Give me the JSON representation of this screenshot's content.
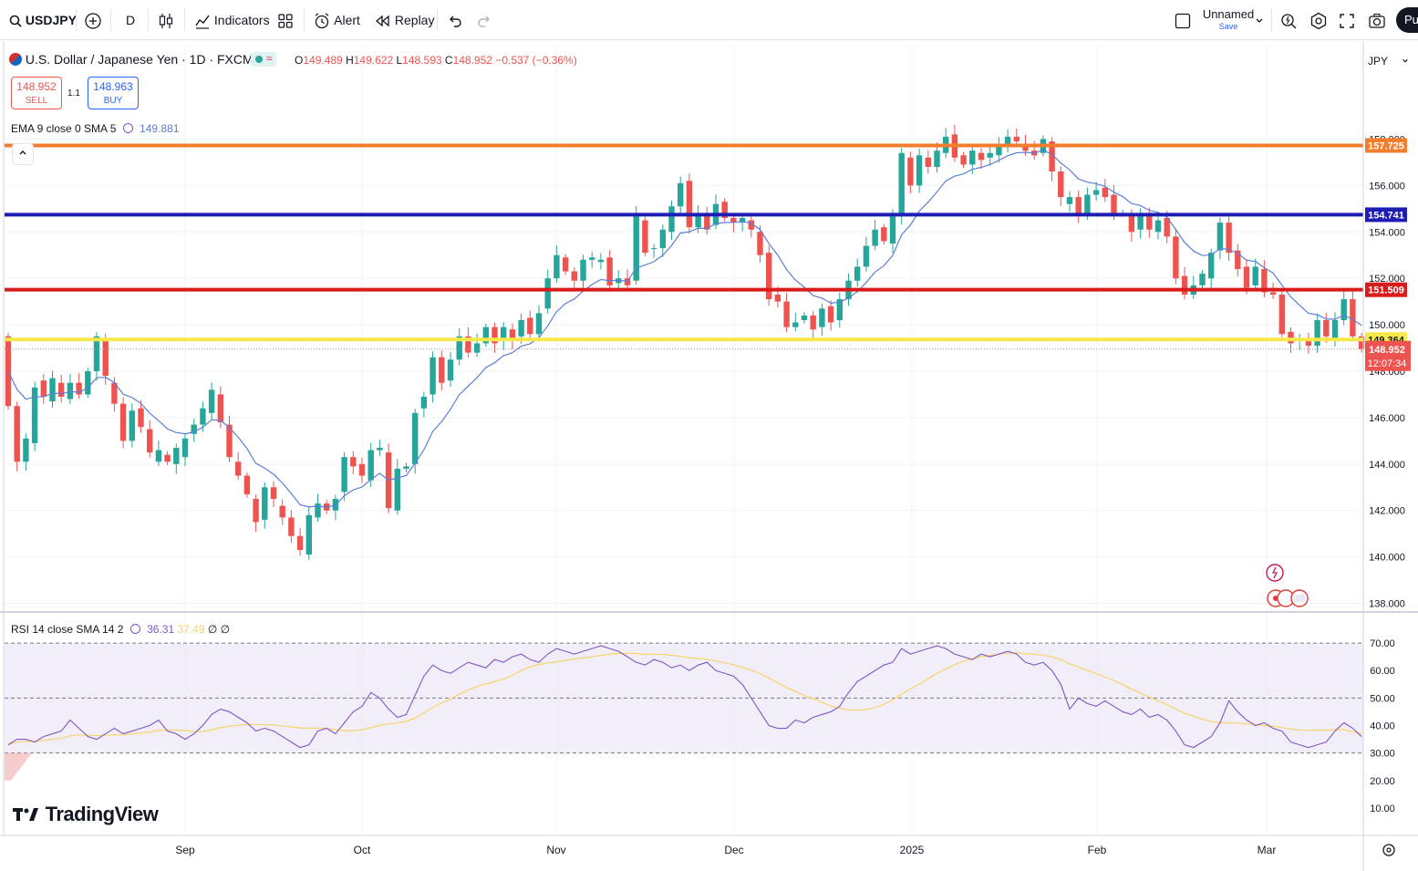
{
  "toolbar": {
    "symbol": "USDJPY",
    "interval": "D",
    "indicators_label": "Indicators",
    "alert_label": "Alert",
    "replay_label": "Replay",
    "layout_name": "Unnamed",
    "layout_save": "Save",
    "publish_label": "Pu"
  },
  "header": {
    "title": "U.S. Dollar / Japanese Yen · 1D · FXCM",
    "ohlc": {
      "o_label": "O",
      "open": "149.489",
      "h_label": "H",
      "high": "149.622",
      "l_label": "L",
      "low": "148.593",
      "c_label": "C",
      "close": "148.952",
      "change": "−0.537 (−0.36%)"
    },
    "sell_price": "148.952",
    "sell_label": "SELL",
    "spread": "1.1",
    "buy_price": "148.963",
    "buy_label": "BUY",
    "ema_label": "EMA 9 close 0 SMA 5",
    "ema_value": "149.881",
    "currency": "JPY"
  },
  "rsi_legend": {
    "label": "RSI 14 close SMA 14 2",
    "rsi": "36.31",
    "sma": "37.49",
    "extra": "∅ ∅"
  },
  "logo": "TradingView",
  "colors": {
    "up": "#26a69a",
    "down": "#ef5350",
    "ema": "#5b7fd8",
    "orange": "#f57c2a",
    "blue": "#1d1db5",
    "red": "#d81b1b",
    "yellow": "#f7e84a",
    "rsi": "#7e57c2",
    "rsi_sma": "#f5d46b",
    "rsi_bg": "#ede7f6"
  },
  "chart_data": {
    "type": "candlestick",
    "price_axis": {
      "min": 137,
      "max": 159,
      "ticks": [
        "138.000",
        "140.000",
        "142.000",
        "144.000",
        "146.000",
        "148.000",
        "150.000",
        "152.000",
        "154.000",
        "156.000",
        "158.000"
      ]
    },
    "rsi_axis": {
      "min": 7,
      "max": 75,
      "ticks": [
        "10.00",
        "20.00",
        "30.00",
        "40.00",
        "50.00",
        "60.00",
        "70.00"
      ],
      "bands": [
        30,
        50,
        70
      ]
    },
    "time_labels": [
      "Sep",
      "Oct",
      "Nov",
      "Dec",
      "2025",
      "Feb",
      "Mar"
    ],
    "horizontal_lines": [
      {
        "price": 157.725,
        "label": "157.725",
        "color": "#f57c2a"
      },
      {
        "price": 154.741,
        "label": "154.741",
        "color": "#1d1db5"
      },
      {
        "price": 151.509,
        "label": "151.509",
        "color": "#d81b1b"
      },
      {
        "price": 149.364,
        "label": "149.364",
        "color": "#f7e84a"
      }
    ],
    "last_price": {
      "price": 148.952,
      "label": "148.952",
      "countdown": "12:07:34"
    },
    "candles": [
      [
        149.5,
        146.5
      ],
      [
        146.5,
        144.1
      ],
      [
        144.1,
        145.1
      ],
      [
        144.9,
        147.3
      ],
      [
        147.6,
        146.9
      ],
      [
        146.7,
        147.7
      ],
      [
        147.5,
        146.9
      ],
      [
        146.8,
        147.5
      ],
      [
        147.5,
        147.0
      ],
      [
        147.0,
        148.0
      ],
      [
        148.0,
        149.5
      ],
      [
        149.4,
        147.8
      ],
      [
        147.5,
        146.6
      ],
      [
        146.6,
        145.0
      ],
      [
        145.0,
        146.3
      ],
      [
        146.4,
        145.6
      ],
      [
        145.5,
        144.5
      ],
      [
        144.1,
        144.6
      ],
      [
        144.4,
        144.1
      ],
      [
        144.0,
        144.7
      ],
      [
        144.3,
        145.1
      ],
      [
        145.3,
        145.7
      ],
      [
        145.7,
        146.4
      ],
      [
        146.2,
        147.2
      ],
      [
        147.0,
        145.8
      ],
      [
        145.7,
        144.3
      ],
      [
        144.1,
        143.5
      ],
      [
        143.5,
        142.7
      ],
      [
        142.5,
        141.5
      ],
      [
        141.6,
        143.0
      ],
      [
        143.0,
        142.5
      ],
      [
        142.2,
        141.7
      ],
      [
        141.7,
        140.9
      ],
      [
        140.9,
        140.3
      ],
      [
        140.1,
        141.8
      ],
      [
        141.7,
        142.3
      ],
      [
        142.3,
        142.0
      ],
      [
        142.0,
        142.5
      ],
      [
        142.8,
        144.3
      ],
      [
        144.3,
        143.9
      ],
      [
        144.0,
        143.5
      ],
      [
        143.3,
        144.6
      ],
      [
        144.6,
        144.7
      ],
      [
        144.5,
        142.1
      ],
      [
        142.0,
        143.8
      ],
      [
        143.8,
        143.9
      ],
      [
        144.0,
        146.2
      ],
      [
        146.4,
        146.9
      ],
      [
        147.0,
        148.6
      ],
      [
        148.6,
        147.5
      ],
      [
        147.6,
        148.5
      ],
      [
        148.5,
        149.5
      ],
      [
        149.5,
        148.8
      ],
      [
        148.8,
        149.2
      ],
      [
        149.2,
        149.9
      ],
      [
        149.9,
        149.2
      ],
      [
        149.3,
        149.9
      ],
      [
        149.8,
        149.3
      ],
      [
        149.5,
        150.2
      ],
      [
        150.3,
        149.6
      ],
      [
        149.6,
        150.5
      ],
      [
        150.7,
        152.0
      ],
      [
        152.0,
        153.0
      ],
      [
        152.9,
        152.3
      ],
      [
        152.3,
        151.9
      ],
      [
        151.9,
        152.8
      ],
      [
        152.8,
        152.9
      ],
      [
        152.7,
        152.8
      ],
      [
        152.9,
        151.7
      ],
      [
        151.8,
        152.0
      ],
      [
        152.0,
        151.7
      ],
      [
        151.9,
        154.7
      ],
      [
        154.5,
        153.1
      ],
      [
        153.3,
        153.3
      ],
      [
        153.3,
        154.1
      ],
      [
        154.0,
        155.1
      ],
      [
        155.1,
        156.1
      ],
      [
        156.2,
        154.2
      ],
      [
        154.2,
        154.8
      ],
      [
        154.7,
        154.1
      ],
      [
        154.3,
        155.2
      ],
      [
        155.3,
        154.6
      ],
      [
        154.6,
        154.4
      ],
      [
        154.4,
        154.6
      ],
      [
        154.5,
        154.1
      ],
      [
        154.0,
        153.0
      ],
      [
        153.1,
        151.1
      ],
      [
        151.3,
        151.0
      ],
      [
        151.0,
        149.9
      ],
      [
        149.9,
        150.1
      ],
      [
        150.2,
        150.4
      ],
      [
        150.4,
        149.8
      ],
      [
        149.9,
        150.7
      ],
      [
        150.8,
        150.1
      ],
      [
        150.2,
        151.1
      ],
      [
        151.1,
        151.9
      ],
      [
        151.9,
        152.5
      ],
      [
        152.5,
        153.4
      ],
      [
        153.4,
        154.1
      ],
      [
        154.2,
        153.6
      ],
      [
        153.5,
        154.8
      ],
      [
        154.7,
        157.4
      ],
      [
        157.2,
        156.0
      ],
      [
        156.0,
        157.3
      ],
      [
        157.2,
        156.8
      ],
      [
        156.8,
        157.5
      ],
      [
        157.4,
        158.1
      ],
      [
        158.2,
        157.2
      ],
      [
        157.3,
        156.9
      ],
      [
        156.9,
        157.5
      ],
      [
        157.4,
        157.1
      ],
      [
        157.2,
        157.4
      ],
      [
        157.3,
        157.8
      ],
      [
        157.7,
        158.1
      ],
      [
        158.1,
        157.9
      ],
      [
        157.8,
        157.5
      ],
      [
        157.5,
        157.3
      ],
      [
        157.4,
        158.0
      ],
      [
        157.9,
        156.6
      ],
      [
        156.6,
        155.5
      ],
      [
        155.2,
        155.5
      ],
      [
        155.5,
        154.7
      ],
      [
        154.8,
        155.6
      ],
      [
        155.6,
        155.8
      ],
      [
        155.9,
        155.5
      ],
      [
        155.6,
        154.7
      ],
      [
        154.8,
        154.8
      ],
      [
        154.8,
        154.0
      ],
      [
        154.1,
        154.8
      ],
      [
        154.8,
        154.1
      ],
      [
        154.0,
        154.5
      ],
      [
        154.6,
        153.8
      ],
      [
        153.8,
        152.0
      ],
      [
        152.1,
        151.3
      ],
      [
        151.3,
        151.7
      ],
      [
        151.7,
        152.2
      ],
      [
        152.0,
        153.1
      ],
      [
        153.2,
        154.4
      ],
      [
        154.4,
        153.1
      ],
      [
        153.2,
        152.4
      ],
      [
        152.5,
        151.6
      ],
      [
        151.7,
        152.5
      ],
      [
        152.4,
        151.4
      ],
      [
        151.4,
        151.3
      ],
      [
        151.3,
        149.6
      ],
      [
        149.7,
        149.2
      ],
      [
        149.3,
        149.4
      ],
      [
        149.4,
        149.1
      ],
      [
        149.1,
        150.2
      ],
      [
        150.2,
        149.5
      ],
      [
        149.3,
        150.2
      ],
      [
        150.2,
        151.1
      ],
      [
        151.1,
        149.5
      ],
      [
        149.5,
        148.95
      ]
    ],
    "wicks": {
      "max_up": 0.45,
      "max_down": 0.45
    },
    "ema_first": 151.8,
    "rsi": [
      33,
      35,
      35,
      34,
      36,
      37,
      38,
      42,
      39,
      36,
      35,
      37,
      39,
      37,
      38,
      39,
      40,
      42,
      38,
      37,
      35,
      37,
      40,
      44,
      46,
      45,
      43,
      41,
      38,
      39,
      38,
      36,
      34,
      32,
      33,
      38,
      39,
      37,
      41,
      45,
      47,
      52,
      50,
      46,
      43,
      44,
      51,
      58,
      62,
      60,
      59,
      61,
      63,
      62,
      61,
      64,
      63,
      65,
      66,
      64,
      63,
      66,
      68,
      67,
      66,
      67,
      68,
      69,
      68,
      67,
      65,
      63,
      62,
      64,
      63,
      61,
      62,
      60,
      62,
      63,
      60,
      59,
      58,
      55,
      50,
      45,
      40,
      39,
      39,
      42,
      41,
      43,
      44,
      45,
      47,
      52,
      56,
      58,
      60,
      62,
      63,
      68,
      66,
      67,
      68,
      69,
      68,
      66,
      65,
      64,
      66,
      65,
      66,
      67,
      66,
      63,
      62,
      63,
      60,
      55,
      46,
      50,
      48,
      47,
      49,
      47,
      45,
      44,
      46,
      43,
      44,
      42,
      38,
      33,
      32,
      34,
      36,
      41,
      49,
      45,
      42,
      40,
      41,
      39,
      38,
      34,
      33,
      32,
      33,
      34,
      38,
      41,
      39,
      36
    ]
  }
}
